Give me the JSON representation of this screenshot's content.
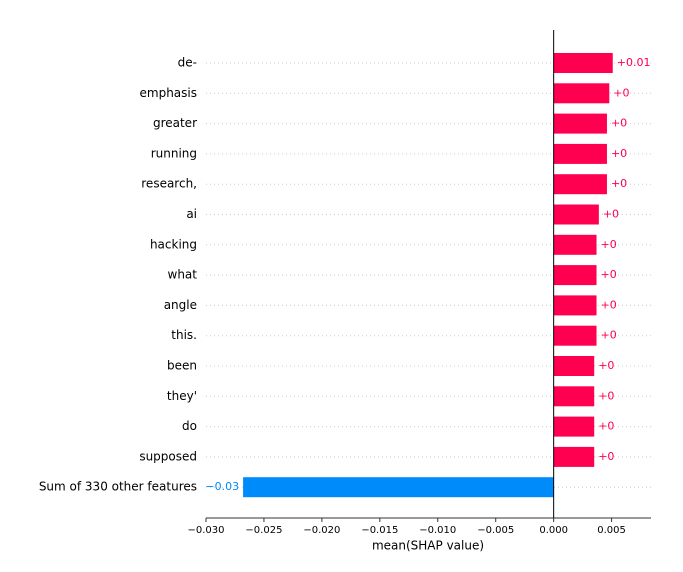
{
  "chart_data": {
    "type": "bar",
    "orientation": "horizontal",
    "categories": [
      "de-",
      "emphasis",
      "greater",
      "running",
      "research,",
      "ai",
      "hacking",
      "what",
      "angle",
      "this.",
      "been",
      "they'",
      "do",
      "supposed",
      "Sum of 330 other features"
    ],
    "values": [
      0.0051,
      0.0048,
      0.0046,
      0.0046,
      0.0046,
      0.0039,
      0.0037,
      0.0037,
      0.0037,
      0.0037,
      0.0035,
      0.0035,
      0.0035,
      0.0035,
      -0.0268
    ],
    "value_labels": [
      "+0.01",
      "+0",
      "+0",
      "+0",
      "+0",
      "+0",
      "+0",
      "+0",
      "+0",
      "+0",
      "+0",
      "+0",
      "+0",
      "+0",
      "−0.03"
    ],
    "colors": [
      "#ff0051",
      "#ff0051",
      "#ff0051",
      "#ff0051",
      "#ff0051",
      "#ff0051",
      "#ff0051",
      "#ff0051",
      "#ff0051",
      "#ff0051",
      "#ff0051",
      "#ff0051",
      "#ff0051",
      "#ff0051",
      "#008bfb"
    ],
    "xlabel": "mean(SHAP value)",
    "xlim": [
      -0.03,
      0.0084
    ],
    "xticks": [
      {
        "value": -0.03,
        "label": "−0.030"
      },
      {
        "value": -0.025,
        "label": "−0.025"
      },
      {
        "value": -0.02,
        "label": "−0.020"
      },
      {
        "value": -0.015,
        "label": "−0.015"
      },
      {
        "value": -0.01,
        "label": "−0.010"
      },
      {
        "value": -0.005,
        "label": "−0.005"
      },
      {
        "value": 0,
        "label": "0.000"
      },
      {
        "value": 0.005,
        "label": "0.005"
      }
    ],
    "grid": true
  }
}
